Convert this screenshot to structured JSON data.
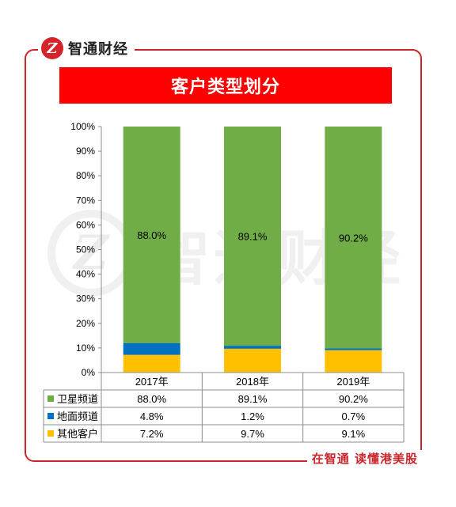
{
  "brand": {
    "name": "智通财经",
    "logo_glyph": "Z"
  },
  "slogan": "在智通 读懂港美股",
  "watermark": {
    "text": "智通财经",
    "glyph": "Z"
  },
  "colors": {
    "satellite": "#70ad47",
    "terrestrial": "#0070c0",
    "other": "#ffc000",
    "title_bg": "#ff0000",
    "frame": "#c9252b"
  },
  "chart_data": {
    "type": "bar",
    "stacked": true,
    "title": "客户类型划分",
    "categories": [
      "2017年",
      "2018年",
      "2019年"
    ],
    "series": [
      {
        "name": "其他客户",
        "values": [
          7.2,
          9.7,
          9.1
        ],
        "table": [
          "7.2%",
          "9.7%",
          "9.1%"
        ],
        "color": "#ffc000"
      },
      {
        "name": "地面频道",
        "values": [
          4.8,
          1.2,
          0.7
        ],
        "table": [
          "4.8%",
          "1.2%",
          "0.7%"
        ],
        "color": "#0070c0"
      },
      {
        "name": "卫星频道",
        "values": [
          88.0,
          89.1,
          90.2
        ],
        "table": [
          "88.0%",
          "89.1%",
          "90.2%"
        ],
        "color": "#70ad47",
        "labels": [
          "88.0%",
          "89.1%",
          "90.2%"
        ]
      }
    ],
    "table_order": [
      "卫星频道",
      "地面频道",
      "其他客户"
    ],
    "yticks": [
      "0%",
      "10%",
      "20%",
      "30%",
      "40%",
      "50%",
      "60%",
      "70%",
      "80%",
      "90%",
      "100%"
    ],
    "ylim": [
      0,
      100
    ],
    "grid": false,
    "legend": "data-table"
  }
}
